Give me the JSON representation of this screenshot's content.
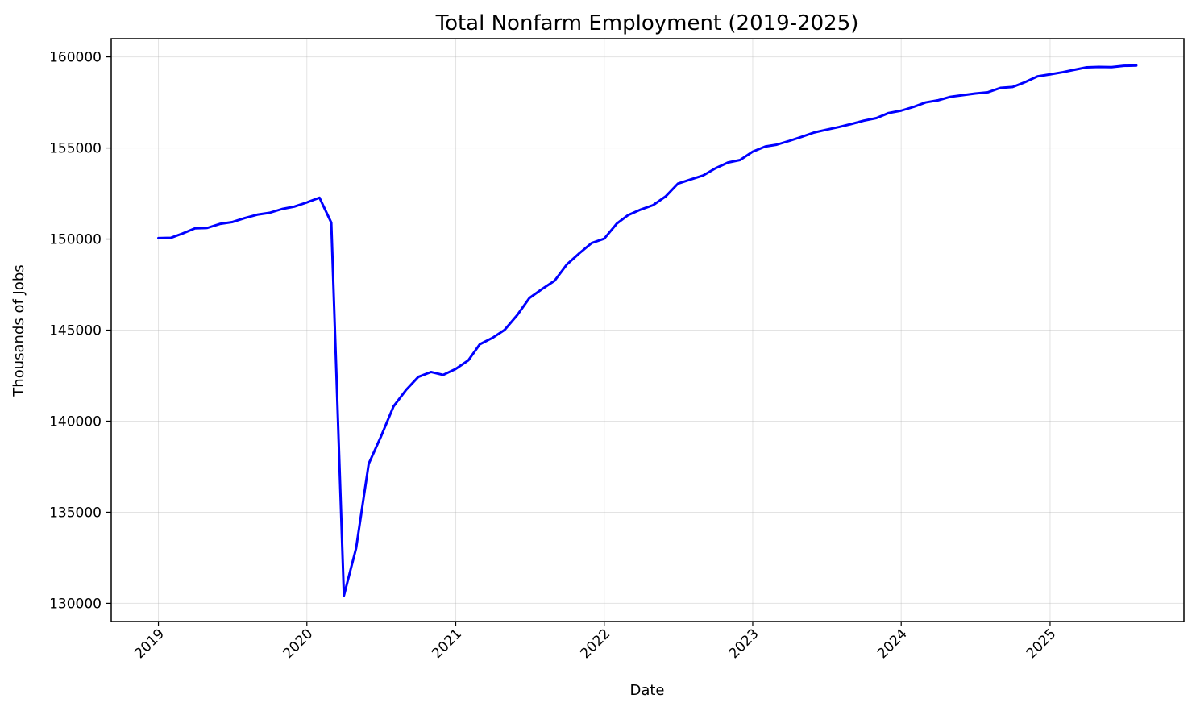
{
  "chart_data": {
    "type": "line",
    "title": "Total Nonfarm Employment (2019-2025)",
    "xlabel": "Date",
    "ylabel": "Thousands of Jobs",
    "x_ticks": [
      "2019",
      "2020",
      "2021",
      "2022",
      "2023",
      "2024",
      "2025"
    ],
    "y_ticks": [
      130000,
      135000,
      140000,
      145000,
      150000,
      155000,
      160000
    ],
    "ylim": [
      129000,
      161000
    ],
    "xlim": [
      "2018-09-07",
      "2025-11-26"
    ],
    "grid": true,
    "colors": {
      "line": "#0000ff"
    },
    "series": [
      {
        "x": [
          "2019-01",
          "2019-02",
          "2019-03",
          "2019-04",
          "2019-05",
          "2019-06",
          "2019-07",
          "2019-08",
          "2019-09",
          "2019-10",
          "2019-11",
          "2019-12",
          "2020-01",
          "2020-02",
          "2020-03",
          "2020-04",
          "2020-05",
          "2020-06",
          "2020-07",
          "2020-08",
          "2020-09",
          "2020-10",
          "2020-11",
          "2020-12",
          "2021-01",
          "2021-02",
          "2021-03",
          "2021-04",
          "2021-05",
          "2021-06",
          "2021-07",
          "2021-08",
          "2021-09",
          "2021-10",
          "2021-11",
          "2021-12",
          "2022-01",
          "2022-02",
          "2022-03",
          "2022-04",
          "2022-05",
          "2022-06",
          "2022-07",
          "2022-08",
          "2022-09",
          "2022-10",
          "2022-11",
          "2022-12",
          "2023-01",
          "2023-02",
          "2023-03",
          "2023-04",
          "2023-05",
          "2023-06",
          "2023-07",
          "2023-08",
          "2023-09",
          "2023-10",
          "2023-11",
          "2023-12",
          "2024-01",
          "2024-02",
          "2024-03",
          "2024-04",
          "2024-05",
          "2024-06",
          "2024-07",
          "2024-08",
          "2024-09",
          "2024-10",
          "2024-11",
          "2024-12",
          "2025-01",
          "2025-02",
          "2025-03",
          "2025-04",
          "2025-05",
          "2025-06",
          "2025-07",
          "2025-08"
        ],
        "values": [
          150050,
          150070,
          150300,
          150590,
          150610,
          150830,
          150930,
          151150,
          151340,
          151440,
          151650,
          151780,
          152010,
          152270,
          150900,
          130420,
          133020,
          137660,
          139150,
          140810,
          141720,
          142430,
          142700,
          142540,
          142870,
          143340,
          144220,
          144570,
          145010,
          145820,
          146760,
          147250,
          147710,
          148600,
          149220,
          149780,
          150020,
          150850,
          151320,
          151620,
          151860,
          152340,
          153040,
          153270,
          153490,
          153880,
          154200,
          154340,
          154800,
          155080,
          155180,
          155390,
          155610,
          155850,
          156000,
          156150,
          156320,
          156500,
          156640,
          156920,
          157050,
          157260,
          157500,
          157620,
          157810,
          157900,
          157990,
          158060,
          158300,
          158350,
          158620,
          158930,
          159040,
          159160,
          159290,
          159430,
          159450,
          159440,
          159510,
          159530
        ]
      }
    ]
  }
}
